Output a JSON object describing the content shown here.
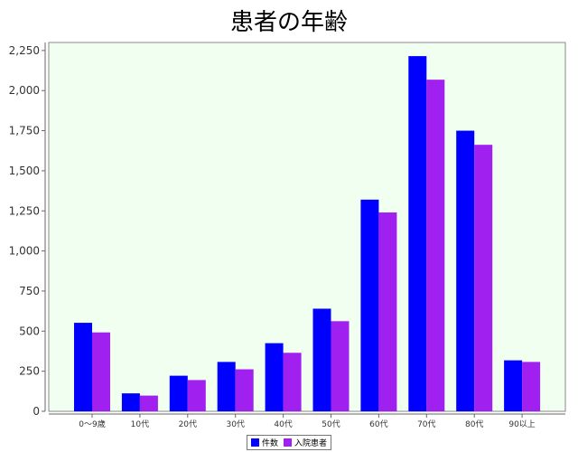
{
  "chart_data": {
    "type": "bar",
    "title": "患者の年齢",
    "xlabel": "",
    "ylabel": "",
    "categories": [
      "0～9歳",
      "10代",
      "20代",
      "30代",
      "40代",
      "50代",
      "60代",
      "70代",
      "80代",
      "90以上"
    ],
    "series": [
      {
        "name": "件数",
        "color": "#0000ff",
        "values": [
          552,
          112,
          222,
          308,
          425,
          640,
          1320,
          2215,
          1750,
          318
        ]
      },
      {
        "name": "入院患者",
        "color": "#a020f0",
        "values": [
          492,
          98,
          195,
          262,
          365,
          562,
          1240,
          2068,
          1662,
          308
        ]
      }
    ],
    "ylim": [
      0,
      2300
    ],
    "yticks": [
      0,
      250,
      500,
      750,
      1000,
      1250,
      1500,
      1750,
      2000,
      2250
    ],
    "ytick_labels": [
      "0",
      "250",
      "500",
      "750",
      "1,000",
      "1,250",
      "1,500",
      "1,750",
      "2,000",
      "2,250"
    ],
    "grid": false,
    "legend": "bottom-center",
    "plot_background": "#f0fff0"
  }
}
